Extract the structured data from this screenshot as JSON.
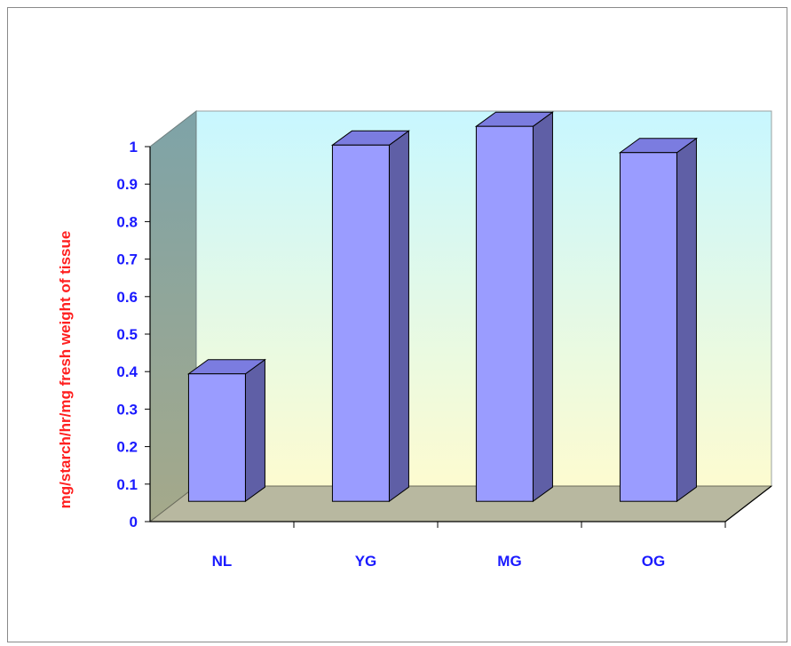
{
  "chart_data": {
    "type": "bar",
    "title": "",
    "xlabel": "",
    "ylabel": "mg/starch/hr/mg fresh weight of tissue",
    "categories": [
      "NL",
      "YG",
      "MG",
      "OG"
    ],
    "values": [
      0.34,
      0.95,
      1.0,
      0.93
    ],
    "ylim": [
      0,
      1
    ],
    "yticks": [
      "0",
      "0.1",
      "0.2",
      "0.3",
      "0.4",
      "0.5",
      "0.6",
      "0.7",
      "0.8",
      "0.9",
      "1"
    ],
    "grid": false,
    "legend": "none",
    "three_d": true
  },
  "colors": {
    "bar_front": "#9a9cff",
    "bar_side": "#5f5fa6",
    "bar_top": "#7b7ce0",
    "bar_outline": "#000000",
    "back_wall_top": "#c8f7ff",
    "back_wall_bottom": "#fdfbd0",
    "side_wall": "#88a6a6",
    "floor": "#b8b8a0",
    "tick_label": "#1a1aff",
    "axis_title": "#ff2020"
  }
}
